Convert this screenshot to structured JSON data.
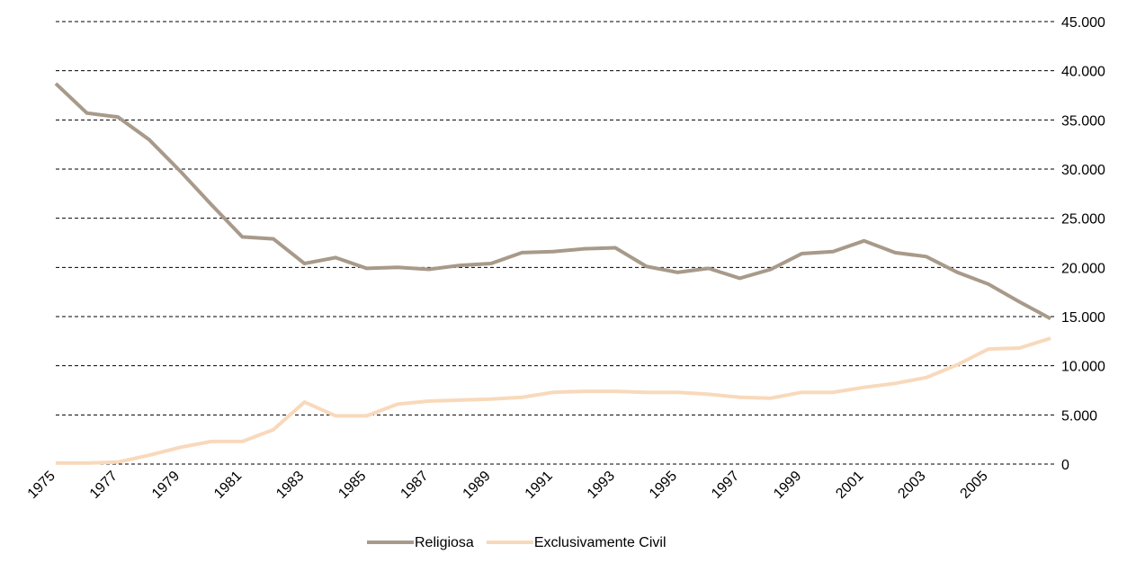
{
  "chart_data": {
    "type": "line",
    "categories": [
      "1975",
      null,
      "1977",
      null,
      "1979",
      null,
      "1981",
      null,
      "1983",
      null,
      "1985",
      null,
      "1987",
      null,
      "1989",
      null,
      "1991",
      null,
      "1993",
      null,
      "1995",
      null,
      "1997",
      null,
      "1999",
      null,
      "2001",
      null,
      "2003",
      null,
      "2005",
      null,
      null
    ],
    "series": [
      {
        "name": "Religiosa",
        "color": "#a89a8a",
        "values": [
          38700,
          35700,
          35300,
          33000,
          29800,
          26400,
          23100,
          22900,
          20400,
          21000,
          19900,
          20000,
          19800,
          20200,
          20400,
          21500,
          21600,
          21900,
          22000,
          20100,
          19500,
          19900,
          18900,
          19800,
          21400,
          21600,
          22700,
          21500,
          21100,
          19500,
          18300,
          16500,
          14800
        ]
      },
      {
        "name": "Exclusivamente Civil",
        "color": "#f8d9bb",
        "values": [
          100,
          100,
          200,
          900,
          1700,
          2300,
          2300,
          3500,
          6300,
          4900,
          4900,
          6100,
          6400,
          6500,
          6600,
          6800,
          7300,
          7400,
          7400,
          7300,
          7300,
          7100,
          6800,
          6700,
          7300,
          7300,
          7800,
          8200,
          8800,
          10100,
          11700,
          11800,
          12800
        ]
      }
    ],
    "ylim": [
      0,
      45000
    ],
    "yticks": [
      0,
      {
        "value": 5000,
        "label": "5.000"
      },
      {
        "value": 10000,
        "label": "10.000"
      },
      {
        "value": 15000,
        "label": "15.000"
      },
      {
        "value": 20000,
        "label": "20.000"
      },
      {
        "value": 25000,
        "label": "25.000"
      },
      {
        "value": 30000,
        "label": "30.000"
      },
      {
        "value": 35000,
        "label": "35.000"
      },
      {
        "value": 40000,
        "label": "40.000"
      },
      {
        "value": 45000,
        "label": "45.000"
      }
    ],
    "grid": true,
    "legend": "bottom"
  }
}
